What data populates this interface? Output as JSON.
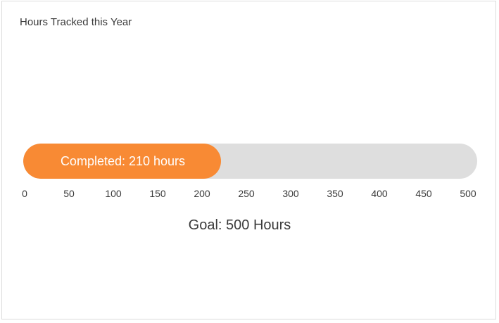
{
  "chart_data": {
    "type": "bar",
    "title": "Hours Tracked this Year",
    "completed_label": "Completed: 210 hours",
    "completed_value": 210,
    "goal_value": 500,
    "goal_label": "Goal: 500 Hours",
    "xlim": [
      0,
      500
    ],
    "ticks": [
      "0",
      "50",
      "100",
      "150",
      "200",
      "250",
      "300",
      "350",
      "400",
      "450",
      "500"
    ],
    "colors": {
      "completed": "#f88a34",
      "remaining": "#dedede"
    }
  }
}
